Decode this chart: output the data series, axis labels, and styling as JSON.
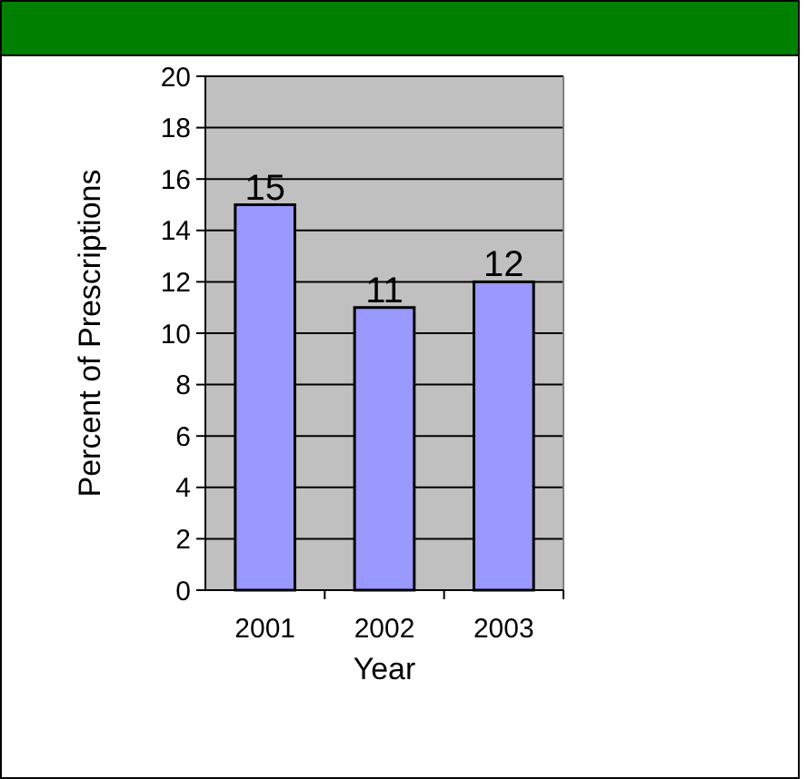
{
  "chart_data": {
    "type": "bar",
    "xlabel": "Year",
    "ylabel": "Percent of Prescriptions",
    "categories": [
      "2001",
      "2002",
      "2003"
    ],
    "values": [
      15,
      11,
      12
    ],
    "color": "#9999ff",
    "ylim": [
      0,
      20
    ],
    "yticks": [
      0,
      2,
      4,
      6,
      8,
      10,
      12,
      14,
      16,
      18,
      20
    ],
    "grid": "y",
    "data_labels": true
  }
}
